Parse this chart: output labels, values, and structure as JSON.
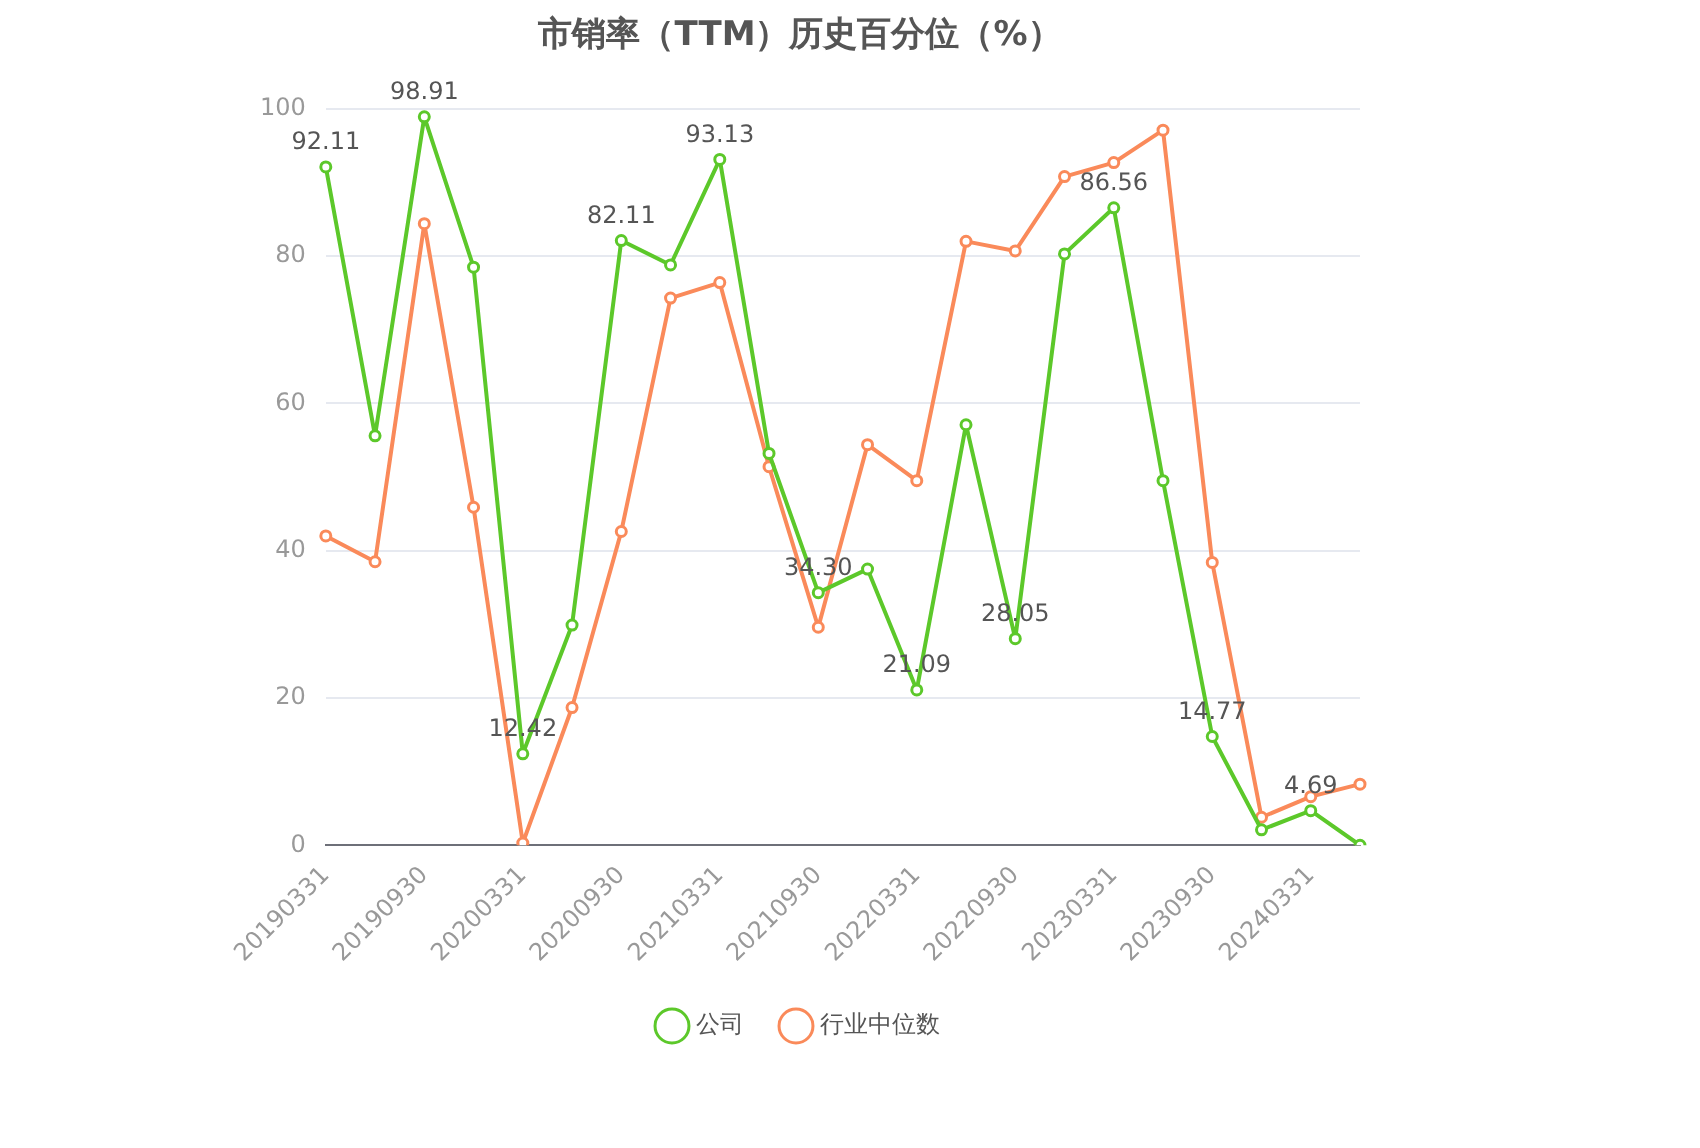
{
  "chart_data": {
    "type": "line",
    "title": "市销率（TTM）历史百分位（%）",
    "categories": [
      "20190331",
      null,
      "20190930",
      null,
      "20200331",
      null,
      "20200930",
      null,
      "20210331",
      null,
      "20210930",
      null,
      "20220331",
      null,
      "20220930",
      null,
      "20230331",
      null,
      "20230930",
      null,
      "20240331",
      null
    ],
    "series": [
      {
        "name": "公司",
        "color": "#5cc82a",
        "values": [
          92.11,
          55.6,
          98.91,
          78.5,
          12.42,
          29.9,
          82.11,
          78.8,
          93.13,
          53.2,
          34.3,
          37.5,
          21.09,
          57.1,
          28.05,
          80.3,
          86.56,
          49.5,
          14.77,
          2.1,
          4.69,
          0
        ],
        "value_labels": [
          "92.11",
          null,
          "98.91",
          null,
          "12.42",
          null,
          "82.11",
          null,
          "93.13",
          null,
          "34.30",
          null,
          "21.09",
          null,
          "28.05",
          null,
          "86.56",
          null,
          "14.77",
          null,
          "4.69",
          null
        ]
      },
      {
        "name": "行业中位数",
        "color": "#fa8a5a",
        "values": [
          42,
          38.5,
          84.4,
          45.9,
          0.3,
          18.7,
          42.6,
          74.3,
          76.4,
          51.4,
          29.6,
          54.4,
          49.5,
          82,
          80.7,
          90.8,
          92.7,
          97.1,
          38.4,
          3.8,
          6.6,
          8.3
        ]
      }
    ],
    "ylim": [
      0,
      100
    ],
    "yticks": [
      0,
      20,
      40,
      60,
      80,
      100
    ],
    "grid": "y",
    "legend": "bottom",
    "marker": "circle",
    "line_style": "solid"
  }
}
